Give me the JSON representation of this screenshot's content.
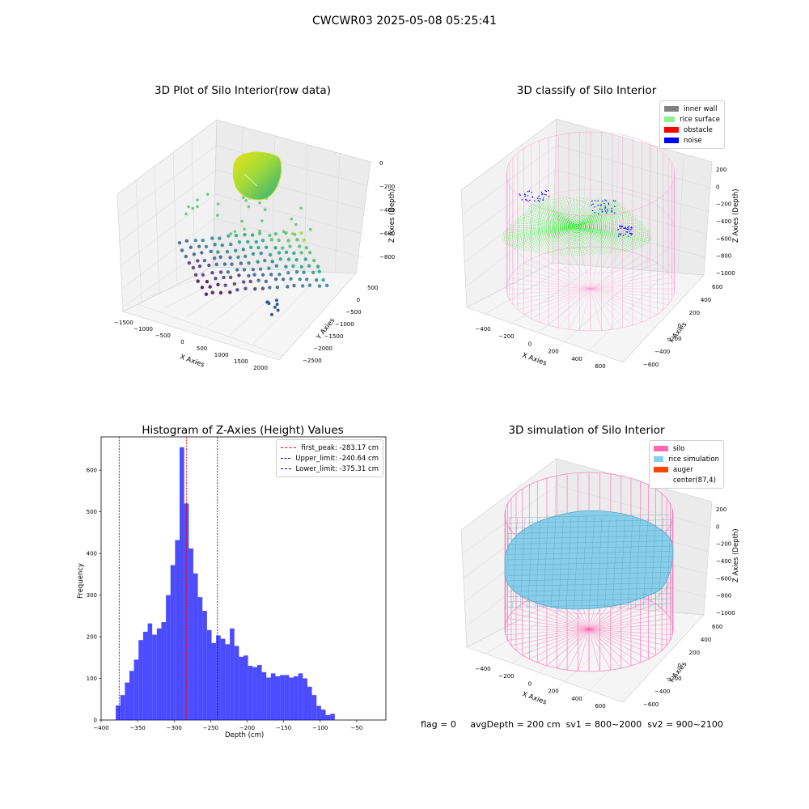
{
  "suptitle": "CWCWR03 2025-05-08 05:25:41",
  "panels": {
    "raw": {
      "title": "3D Plot of Silo Interior(row data)",
      "xlabel": "X Axies",
      "ylabel": "Y Axies",
      "zlabel": "Z Axies (Depth)",
      "xticks": [
        "−1500",
        "−1000",
        "−500",
        "0",
        "500",
        "1000",
        "1500",
        "2000"
      ],
      "yticks": [
        "500",
        "0",
        "−500",
        "−1000",
        "−1500",
        "−2000",
        "−2500"
      ],
      "zticks": [
        "0",
        "−200",
        "−400",
        "−600",
        "−800"
      ]
    },
    "classify": {
      "title": "3D classify of Silo Interior",
      "xlabel": "X Axies",
      "ylabel": "Y Axies",
      "zlabel": "Z Axies (Depth)",
      "xticks": [
        "−400",
        "−200",
        "0",
        "200",
        "400",
        "600"
      ],
      "yticks": [
        "600",
        "400",
        "200",
        "0",
        "−200",
        "−400",
        "−600"
      ],
      "zticks": [
        "200",
        "0",
        "−200",
        "−400",
        "−600",
        "−800",
        "−1000"
      ],
      "legend": [
        {
          "label": "inner wall",
          "color": "#808080"
        },
        {
          "label": "rice surface",
          "color": "#90ee90"
        },
        {
          "label": "obstacle",
          "color": "#ff0000"
        },
        {
          "label": "noise",
          "color": "#0000ff"
        }
      ]
    },
    "simulation": {
      "title": "3D simulation of Silo Interior",
      "xlabel": "X Axies",
      "ylabel": "Y Axies",
      "zlabel": "Z Axies (Depth)",
      "xticks": [
        "−400",
        "−200",
        "0",
        "200",
        "400",
        "600"
      ],
      "yticks": [
        "600",
        "400",
        "200",
        "0",
        "−200",
        "−400",
        "−600"
      ],
      "zticks": [
        "200",
        "0",
        "−200",
        "−400",
        "−600",
        "−800",
        "−1000"
      ],
      "legend": [
        {
          "label": "silo",
          "color": "#ff69b4"
        },
        {
          "label": "rice simulation",
          "color": "#87ceeb"
        },
        {
          "label": "auger",
          "color": "#ff4500"
        },
        {
          "label": "center(87,4)",
          "color": "#ffffff"
        }
      ]
    }
  },
  "footer": {
    "flag": "flag = 0",
    "avg": "avgDepth = 200 cm",
    "sv1": "sv1 = 800~2000",
    "sv2": "sv2 = 900~2100"
  },
  "chart_data": [
    {
      "type": "histogram",
      "title": "Histogram of Z-Axies (Height) Values",
      "xlabel": "Depth (cm)",
      "ylabel": "Frequency",
      "xlim": [
        -400,
        -10
      ],
      "ylim": [
        0,
        680
      ],
      "xticks": [
        -400,
        -350,
        -300,
        -250,
        -200,
        -150,
        -100,
        -50
      ],
      "yticks": [
        0,
        100,
        200,
        300,
        400,
        500,
        600
      ],
      "bar_color": "#0000ff",
      "bin_start": -380,
      "bin_width": 6.25,
      "counts": [
        35,
        60,
        90,
        118,
        145,
        192,
        212,
        232,
        205,
        220,
        235,
        300,
        372,
        432,
        655,
        520,
        412,
        352,
        295,
        262,
        216,
        185,
        203,
        195,
        182,
        220,
        178,
        152,
        155,
        130,
        127,
        132,
        115,
        102,
        112,
        105,
        108,
        108,
        102,
        105,
        112,
        100,
        80,
        60,
        34,
        25,
        12,
        15
      ],
      "lines": [
        {
          "label": "first_peak: -283.17 cm",
          "x": -283.17,
          "color": "#ff0000"
        },
        {
          "label": "Upper_limit: -240.64 cm",
          "x": -240.64,
          "color": "#00008b"
        },
        {
          "label": "Lower_limit: -375.31 cm",
          "x": -375.31,
          "color": "#0000cd"
        }
      ]
    }
  ]
}
